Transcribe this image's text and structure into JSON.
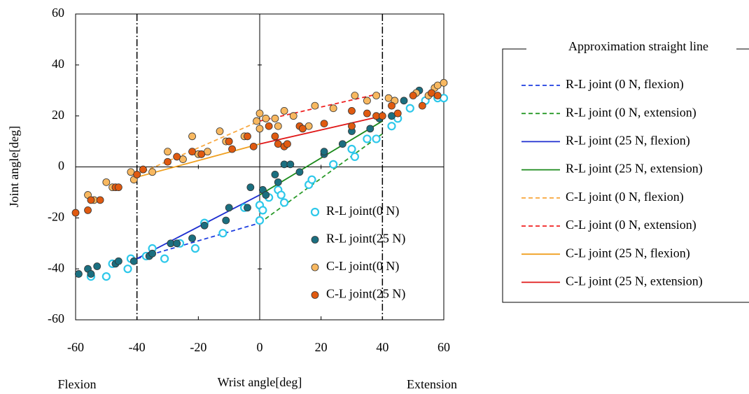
{
  "chart_data": {
    "type": "scatter",
    "x_label": "Wrist angle[deg]",
    "y_label": "Joint angle[deg]",
    "annotations": [
      "Flexion",
      "Extension"
    ],
    "xlim": [
      -60,
      60
    ],
    "ylim": [
      -60,
      60
    ],
    "xticks": [
      -60,
      -40,
      -20,
      0,
      20,
      40,
      60
    ],
    "yticks": [
      -60,
      -40,
      -20,
      0,
      20,
      40,
      60
    ],
    "vlines": [
      -40,
      40
    ],
    "series": [
      {
        "name": "R-L joint(0 N)",
        "color": "#2ec8ea",
        "filled": false,
        "x": [
          -55,
          -50,
          -48,
          -43,
          -42,
          -37,
          -35,
          -31,
          -26,
          -21,
          -18,
          -12,
          -5,
          0,
          0,
          1,
          3,
          6,
          7,
          8,
          16,
          17,
          24,
          30,
          31,
          35,
          38,
          43,
          45,
          49,
          54,
          58,
          60
        ],
        "values": [
          -43,
          -43,
          -38,
          -40,
          -36,
          -35,
          -32,
          -36,
          -30,
          -32,
          -22,
          -26,
          -16,
          -21,
          -15,
          -17,
          -12,
          -9,
          -11,
          -14,
          -7,
          -5,
          1,
          7,
          4,
          11,
          11,
          16,
          19,
          23,
          26,
          27,
          27
        ]
      },
      {
        "name": "R-L joint(25 N)",
        "color": "#1b6f80",
        "filled": true,
        "x": [
          -59,
          -56,
          -55,
          -53,
          -47,
          -46,
          -41,
          -36,
          -35,
          -29,
          -27,
          -22,
          -18,
          -10,
          -11,
          -4,
          -3,
          1,
          2,
          5,
          6,
          8,
          10,
          13,
          21,
          21,
          27,
          30,
          36,
          39,
          43,
          47,
          52
        ],
        "values": [
          -42,
          -40,
          -42,
          -39,
          -38,
          -37,
          -37,
          -35,
          -34,
          -30,
          -30,
          -28,
          -23,
          -16,
          -21,
          -16,
          -8,
          -9,
          -11,
          -3,
          -6,
          1,
          1,
          -2,
          5,
          6,
          9,
          14,
          15,
          19,
          20,
          26,
          30
        ]
      },
      {
        "name": "C-L joint(0 N)",
        "color": "#f8b860",
        "filled": true,
        "x": [
          -56,
          -54,
          -50,
          -48,
          -42,
          -41,
          -38,
          -35,
          -30,
          -25,
          -22,
          -20,
          -17,
          -13,
          -11,
          -5,
          -1,
          0,
          0,
          2,
          5,
          6,
          8,
          11,
          16,
          18,
          24,
          31,
          35,
          38,
          42,
          44,
          51,
          55,
          57,
          58,
          60
        ],
        "values": [
          -11,
          -13,
          -6,
          -8,
          -2,
          -5,
          -1,
          -2,
          6,
          3,
          12,
          5,
          6,
          14,
          10,
          12,
          18,
          21,
          15,
          19,
          19,
          16,
          22,
          20,
          16,
          24,
          23,
          28,
          26,
          28,
          27,
          26,
          29,
          28,
          31,
          32,
          33
        ]
      },
      {
        "name": "C-L joint(25 N)",
        "color": "#e05a10",
        "filled": true,
        "x": [
          -60,
          -56,
          -55,
          -52,
          -47,
          -46,
          -40,
          -38,
          -30,
          -27,
          -22,
          -19,
          -10,
          -9,
          -4,
          -2,
          3,
          5,
          6,
          8,
          9,
          13,
          14,
          21,
          30,
          30,
          35,
          38,
          40,
          43,
          45,
          50,
          53,
          56,
          58
        ],
        "values": [
          -18,
          -17,
          -13,
          -13,
          -8,
          -8,
          -3,
          -1,
          2,
          4,
          6,
          5,
          10,
          7,
          12,
          8,
          16,
          12,
          9,
          8,
          9,
          16,
          15,
          17,
          16,
          22,
          21,
          20,
          20,
          24,
          21,
          28,
          24,
          29,
          28
        ]
      }
    ],
    "legend_title": "Approximation straight line",
    "fits": [
      {
        "name": "R-L joint (0 N, flexion)",
        "color": "#1f3fe0",
        "dashed": true,
        "x": [
          -40,
          0
        ],
        "values": [
          -36,
          -22
        ]
      },
      {
        "name": "R-L joint (0 N, extension)",
        "color": "#2a9a2a",
        "dashed": true,
        "x": [
          0,
          40
        ],
        "values": [
          -22,
          13
        ]
      },
      {
        "name": "R-L joint (25 N, flexion)",
        "color": "#1f2fd0",
        "dashed": false,
        "x": [
          -40,
          0
        ],
        "values": [
          -36,
          -11
        ]
      },
      {
        "name": "R-L joint (25 N, extension)",
        "color": "#1a8a1a",
        "dashed": false,
        "x": [
          0,
          40
        ],
        "values": [
          -11,
          18
        ]
      },
      {
        "name": "C-L joint (0 N, flexion)",
        "color": "#f8a840",
        "dashed": true,
        "x": [
          -40,
          0
        ],
        "values": [
          -3,
          18
        ]
      },
      {
        "name": "C-L joint (0 N, extension)",
        "color": "#f02020",
        "dashed": true,
        "x": [
          0,
          40
        ],
        "values": [
          18,
          29
        ]
      },
      {
        "name": "C-L joint (25 N, flexion)",
        "color": "#f0a020",
        "dashed": false,
        "x": [
          -40,
          0
        ],
        "values": [
          -4,
          9
        ]
      },
      {
        "name": "C-L joint (25 N, extension)",
        "color": "#e01818",
        "dashed": false,
        "x": [
          0,
          40
        ],
        "values": [
          9,
          20
        ]
      }
    ]
  }
}
